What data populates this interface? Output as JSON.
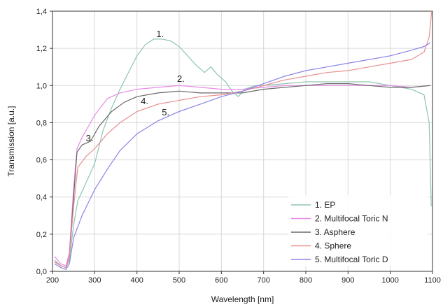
{
  "chart_data": {
    "type": "line",
    "xlabel": "Wavelength [nm]",
    "ylabel": "Transmission [a.u.]",
    "xlim": [
      200,
      1100
    ],
    "ylim": [
      0.0,
      1.4
    ],
    "x_ticks": [
      "200",
      "300",
      "400",
      "500",
      "600",
      "700",
      "800",
      "900",
      "1000",
      "1100"
    ],
    "y_ticks": [
      "0,0",
      "0,2",
      "0,4",
      "0,6",
      "0,8",
      "1,0",
      "1,2",
      "1,4"
    ],
    "x_tick_values": [
      200,
      300,
      400,
      500,
      600,
      700,
      800,
      900,
      1000,
      1100
    ],
    "y_tick_values": [
      0.0,
      0.2,
      0.4,
      0.6,
      0.8,
      1.0,
      1.2,
      1.4
    ],
    "grid": true,
    "legend_position": "bottom-right",
    "series": [
      {
        "name": "1. EP",
        "color": "#8ec5b0",
        "points": [
          [
            205,
            0.06
          ],
          [
            220,
            0.03
          ],
          [
            232,
            0.02
          ],
          [
            240,
            0.06
          ],
          [
            250,
            0.25
          ],
          [
            260,
            0.38
          ],
          [
            280,
            0.48
          ],
          [
            300,
            0.58
          ],
          [
            320,
            0.76
          ],
          [
            340,
            0.88
          ],
          [
            360,
            0.98
          ],
          [
            380,
            1.07
          ],
          [
            400,
            1.16
          ],
          [
            420,
            1.22
          ],
          [
            440,
            1.25
          ],
          [
            460,
            1.25
          ],
          [
            480,
            1.24
          ],
          [
            500,
            1.21
          ],
          [
            520,
            1.16
          ],
          [
            540,
            1.11
          ],
          [
            560,
            1.07
          ],
          [
            575,
            1.1
          ],
          [
            590,
            1.06
          ],
          [
            610,
            1.02
          ],
          [
            625,
            0.97
          ],
          [
            640,
            0.94
          ],
          [
            655,
            0.98
          ],
          [
            680,
            1.0
          ],
          [
            700,
            1.0
          ],
          [
            750,
            1.01
          ],
          [
            800,
            1.02
          ],
          [
            850,
            1.02
          ],
          [
            900,
            1.02
          ],
          [
            950,
            1.02
          ],
          [
            1000,
            1.0
          ],
          [
            1050,
            0.98
          ],
          [
            1080,
            0.95
          ],
          [
            1092,
            0.8
          ],
          [
            1097,
            0.35
          ]
        ]
      },
      {
        "name": "2. Multifocal Toric N",
        "color": "#e88ae8",
        "points": [
          [
            205,
            0.08
          ],
          [
            220,
            0.04
          ],
          [
            232,
            0.03
          ],
          [
            240,
            0.1
          ],
          [
            250,
            0.45
          ],
          [
            258,
            0.66
          ],
          [
            270,
            0.72
          ],
          [
            300,
            0.84
          ],
          [
            330,
            0.93
          ],
          [
            360,
            0.96
          ],
          [
            400,
            0.98
          ],
          [
            450,
            0.99
          ],
          [
            500,
            1.0
          ],
          [
            550,
            0.99
          ],
          [
            600,
            0.98
          ],
          [
            650,
            0.98
          ],
          [
            700,
            0.99
          ],
          [
            750,
            1.0
          ],
          [
            800,
            1.0
          ],
          [
            850,
            1.0
          ],
          [
            900,
            1.0
          ],
          [
            950,
            1.0
          ],
          [
            1000,
            1.0
          ],
          [
            1050,
            0.99
          ],
          [
            1095,
            1.0
          ]
        ]
      },
      {
        "name": "3. Asphere",
        "color": "#6a6a6a",
        "points": [
          [
            205,
            0.05
          ],
          [
            220,
            0.03
          ],
          [
            232,
            0.02
          ],
          [
            240,
            0.08
          ],
          [
            250,
            0.4
          ],
          [
            258,
            0.64
          ],
          [
            270,
            0.68
          ],
          [
            290,
            0.7
          ],
          [
            310,
            0.78
          ],
          [
            340,
            0.86
          ],
          [
            370,
            0.91
          ],
          [
            400,
            0.94
          ],
          [
            450,
            0.96
          ],
          [
            500,
            0.97
          ],
          [
            550,
            0.96
          ],
          [
            600,
            0.96
          ],
          [
            650,
            0.96
          ],
          [
            700,
            0.98
          ],
          [
            750,
            0.99
          ],
          [
            800,
            1.0
          ],
          [
            850,
            1.01
          ],
          [
            900,
            1.01
          ],
          [
            950,
            1.0
          ],
          [
            1000,
            0.99
          ],
          [
            1050,
            0.99
          ],
          [
            1095,
            1.0
          ]
        ]
      },
      {
        "name": "4. Sphere",
        "color": "#e89090",
        "points": [
          [
            205,
            0.05
          ],
          [
            220,
            0.03
          ],
          [
            232,
            0.02
          ],
          [
            240,
            0.08
          ],
          [
            250,
            0.35
          ],
          [
            260,
            0.56
          ],
          [
            280,
            0.62
          ],
          [
            300,
            0.66
          ],
          [
            330,
            0.74
          ],
          [
            360,
            0.8
          ],
          [
            400,
            0.86
          ],
          [
            450,
            0.9
          ],
          [
            500,
            0.92
          ],
          [
            550,
            0.94
          ],
          [
            600,
            0.95
          ],
          [
            650,
            0.97
          ],
          [
            700,
            1.0
          ],
          [
            750,
            1.03
          ],
          [
            800,
            1.05
          ],
          [
            850,
            1.07
          ],
          [
            900,
            1.08
          ],
          [
            950,
            1.1
          ],
          [
            1000,
            1.12
          ],
          [
            1050,
            1.14
          ],
          [
            1080,
            1.18
          ],
          [
            1092,
            1.26
          ],
          [
            1098,
            1.4
          ]
        ]
      },
      {
        "name": "5. Multifocal Toric D",
        "color": "#8a84e8",
        "points": [
          [
            205,
            0.04
          ],
          [
            220,
            0.02
          ],
          [
            232,
            0.01
          ],
          [
            240,
            0.04
          ],
          [
            250,
            0.18
          ],
          [
            270,
            0.3
          ],
          [
            300,
            0.44
          ],
          [
            330,
            0.55
          ],
          [
            360,
            0.65
          ],
          [
            400,
            0.74
          ],
          [
            450,
            0.81
          ],
          [
            500,
            0.86
          ],
          [
            550,
            0.9
          ],
          [
            600,
            0.94
          ],
          [
            650,
            0.97
          ],
          [
            700,
            1.01
          ],
          [
            750,
            1.05
          ],
          [
            800,
            1.08
          ],
          [
            850,
            1.1
          ],
          [
            900,
            1.12
          ],
          [
            950,
            1.14
          ],
          [
            1000,
            1.16
          ],
          [
            1050,
            1.19
          ],
          [
            1080,
            1.21
          ],
          [
            1095,
            1.23
          ]
        ]
      }
    ],
    "annotations": [
      {
        "text": "1.",
        "x": 455,
        "y": 1.26
      },
      {
        "text": "2.",
        "x": 504,
        "y": 1.02
      },
      {
        "text": "3.",
        "x": 288,
        "y": 0.7
      },
      {
        "text": "4.",
        "x": 418,
        "y": 0.9
      },
      {
        "text": "5.",
        "x": 468,
        "y": 0.84
      }
    ]
  }
}
